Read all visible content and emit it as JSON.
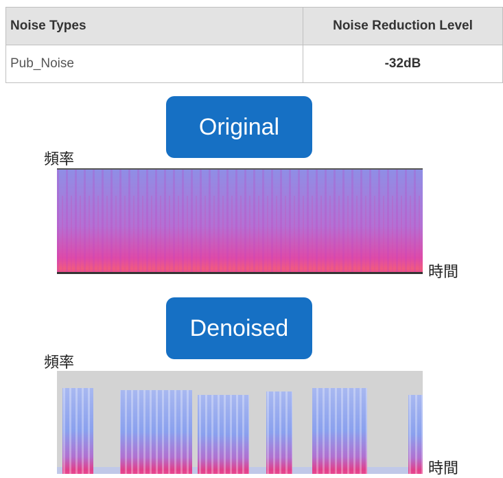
{
  "table": {
    "headers": [
      "Noise Types",
      "Noise Reduction Level"
    ],
    "rows": [
      [
        "Pub_Noise",
        "-32dB"
      ]
    ]
  },
  "panels": [
    {
      "button": "Original",
      "y_label": "頻率",
      "x_label": "時間"
    },
    {
      "button": "Denoised",
      "y_label": "頻率",
      "x_label": "時間"
    }
  ]
}
